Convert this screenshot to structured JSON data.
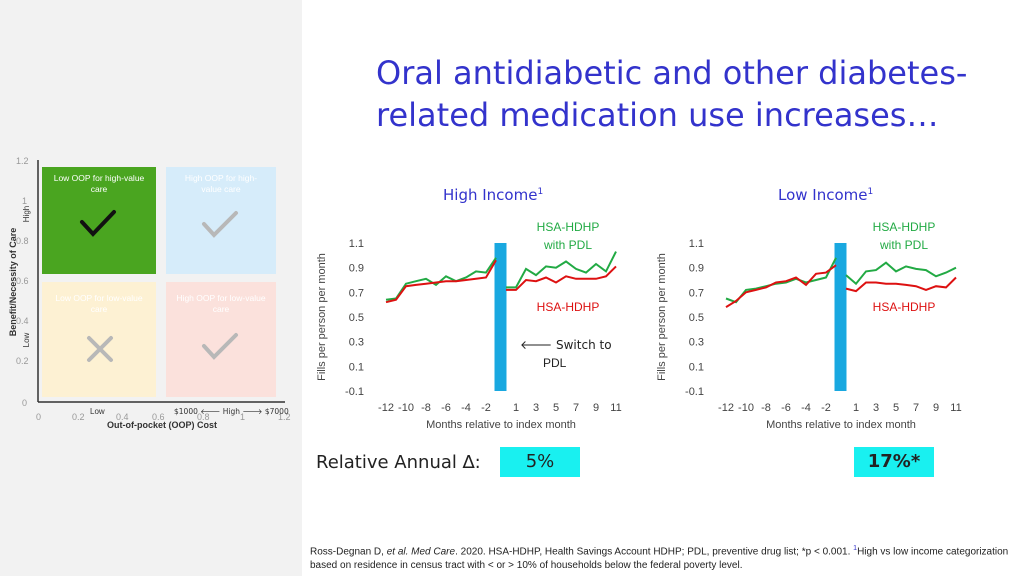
{
  "title": "Oral antidiabetic and other diabetes-related medication use increases…",
  "quadrant": {
    "ylabel": "Benefit/Necessity of Care",
    "xlabel": "Out-of-pocket (OOP) Cost",
    "y_ticks": [
      "0",
      "0.2",
      "0.4",
      "0.6",
      "0.8",
      "1",
      "1.2"
    ],
    "x_ticks": [
      "0",
      "0.2",
      "0.4",
      "0.6",
      "0.8",
      "1",
      "1.2"
    ],
    "y_low": "Low",
    "y_high": "High",
    "x_low": "Low",
    "x_high": "$1000 🡐 High 🡒 $7000",
    "cells": [
      {
        "label": "Low OOP for high-value care",
        "color": "#4aa520",
        "mark": "check"
      },
      {
        "label": "High OOP for high-value care",
        "color": "#d6ecfa",
        "mark": "check"
      },
      {
        "label": "Low OOP for low-value care",
        "color": "#fdf1d3",
        "mark": "cross"
      },
      {
        "label": "High OOP for low-value care",
        "color": "#fbe1dc",
        "mark": "check"
      }
    ]
  },
  "charts": [
    {
      "heading": "High Income",
      "sup": "1"
    },
    {
      "heading": "Low Income",
      "sup": "1"
    }
  ],
  "legend": {
    "green": "HSA-HDHP with PDL",
    "green_line1": "HSA-HDHP",
    "green_line2": "with PDL",
    "red": "HSA-HDHP",
    "switch_line1": "🡐 Switch to",
    "switch_line2": "PDL"
  },
  "colors": {
    "green": "#22aa44",
    "red": "#dd1111",
    "bar": "#19a8e0",
    "title": "#3333cc"
  },
  "chart_data": [
    {
      "type": "line",
      "title": "High Income",
      "xlabel": "Months relative to index month",
      "ylabel": "Fills per person per month",
      "ylim": [
        -0.1,
        1.1
      ],
      "y_ticks": [
        -0.1,
        0.1,
        0.3,
        0.5,
        0.7,
        0.9,
        1.1
      ],
      "x_ticks": [
        -12,
        -10,
        -8,
        -6,
        -4,
        -2,
        1,
        3,
        5,
        7,
        9,
        11
      ],
      "pre_x": [
        -12,
        -11,
        -10,
        -9,
        -8,
        -7,
        -6,
        -5,
        -4,
        -3,
        -2,
        -1
      ],
      "post_x": [
        0,
        1,
        2,
        3,
        4,
        5,
        6,
        7,
        8,
        9,
        10,
        11
      ],
      "series": [
        {
          "name": "HSA-HDHP with PDL",
          "pre": [
            0.64,
            0.65,
            0.77,
            0.79,
            0.81,
            0.76,
            0.83,
            0.79,
            0.82,
            0.87,
            0.86,
            0.98
          ],
          "post": [
            0.74,
            0.74,
            0.89,
            0.84,
            0.91,
            0.9,
            0.95,
            0.89,
            0.86,
            0.93,
            0.87,
            1.03
          ]
        },
        {
          "name": "HSA-HDHP",
          "pre": [
            0.62,
            0.64,
            0.75,
            0.76,
            0.77,
            0.78,
            0.79,
            0.79,
            0.8,
            0.81,
            0.82,
            0.96
          ],
          "post": [
            0.72,
            0.72,
            0.8,
            0.79,
            0.82,
            0.78,
            0.83,
            0.81,
            0.81,
            0.81,
            0.83,
            0.91
          ]
        }
      ]
    },
    {
      "type": "line",
      "title": "Low Income",
      "xlabel": "Months relative to index month",
      "ylabel": "Fills per person per month",
      "ylim": [
        -0.1,
        1.1
      ],
      "y_ticks": [
        -0.1,
        0.1,
        0.3,
        0.5,
        0.7,
        0.9,
        1.1
      ],
      "x_ticks": [
        -12,
        -10,
        -8,
        -6,
        -4,
        -2,
        1,
        3,
        5,
        7,
        9,
        11
      ],
      "pre_x": [
        -12,
        -11,
        -10,
        -9,
        -8,
        -7,
        -6,
        -5,
        -4,
        -3,
        -2,
        -1
      ],
      "post_x": [
        0,
        1,
        2,
        3,
        4,
        5,
        6,
        7,
        8,
        9,
        10,
        11
      ],
      "series": [
        {
          "name": "HSA-HDHP with PDL",
          "pre": [
            0.65,
            0.62,
            0.72,
            0.73,
            0.75,
            0.77,
            0.78,
            0.81,
            0.78,
            0.8,
            0.82,
            0.98
          ],
          "post": [
            0.84,
            0.77,
            0.87,
            0.88,
            0.94,
            0.87,
            0.91,
            0.89,
            0.88,
            0.83,
            0.86,
            0.9
          ]
        },
        {
          "name": "HSA-HDHP",
          "pre": [
            0.58,
            0.63,
            0.7,
            0.72,
            0.74,
            0.78,
            0.79,
            0.82,
            0.76,
            0.85,
            0.86,
            0.92
          ],
          "post": [
            0.73,
            0.71,
            0.78,
            0.78,
            0.77,
            0.77,
            0.76,
            0.75,
            0.72,
            0.75,
            0.74,
            0.82
          ]
        }
      ]
    }
  ],
  "relative": {
    "label": "Relative Annual ∆:",
    "values": [
      "5%",
      "17%*"
    ]
  },
  "footer": {
    "text_a": "Ross-Degnan D, ",
    "text_b": "et al. Med Care",
    "text_c": ". 2020. HSA-HDHP, Health Savings Account HDHP; PDL, preventive drug list; *p < 0.001. ",
    "sup": "1",
    "text_d": "High vs low income categorization based on residence in census tract with < or > 10% of households below the federal poverty level."
  }
}
